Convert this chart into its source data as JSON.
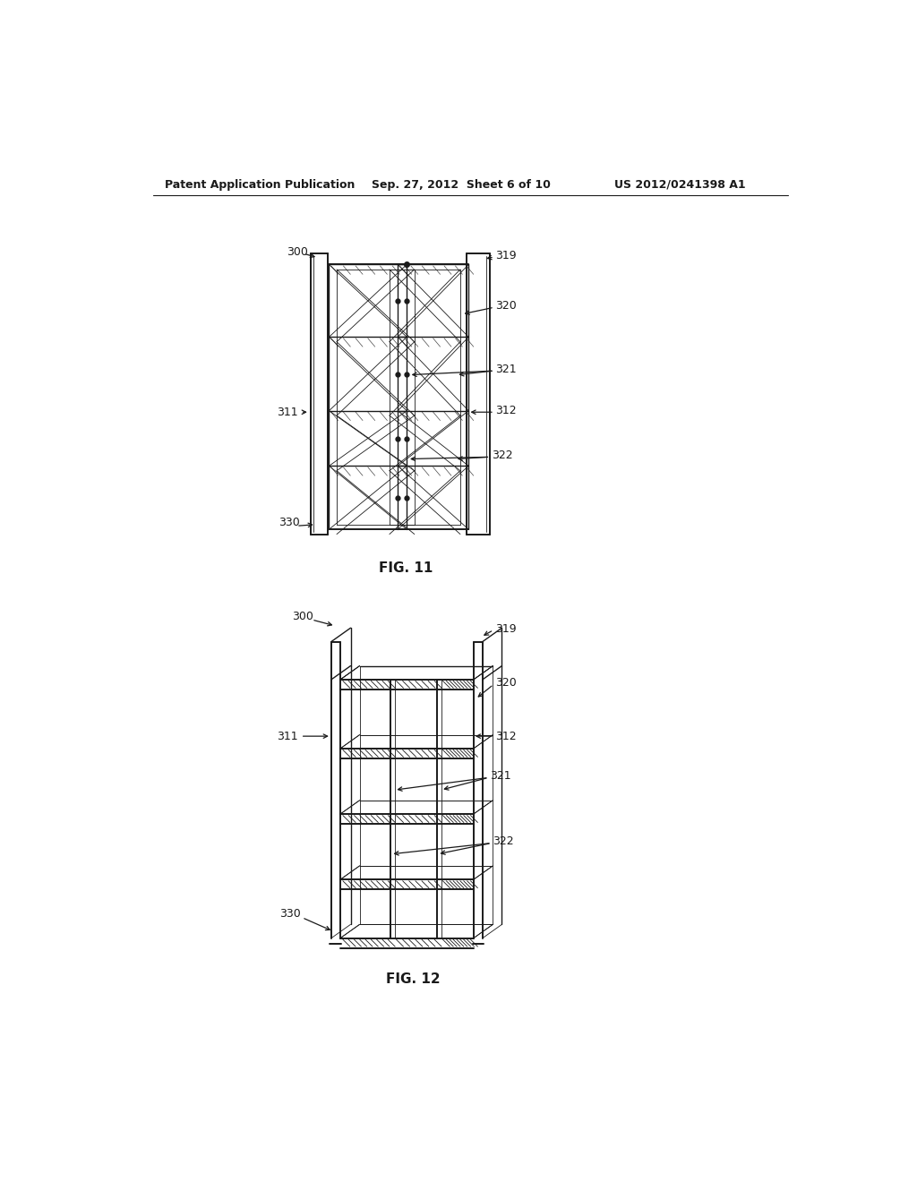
{
  "bg_color": "#ffffff",
  "line_color": "#1a1a1a",
  "header_text": "Patent Application Publication",
  "header_date": "Sep. 27, 2012  Sheet 6 of 10",
  "header_patent": "US 2012/0241398 A1",
  "fig11_caption": "FIG. 11",
  "fig12_caption": "FIG. 12"
}
